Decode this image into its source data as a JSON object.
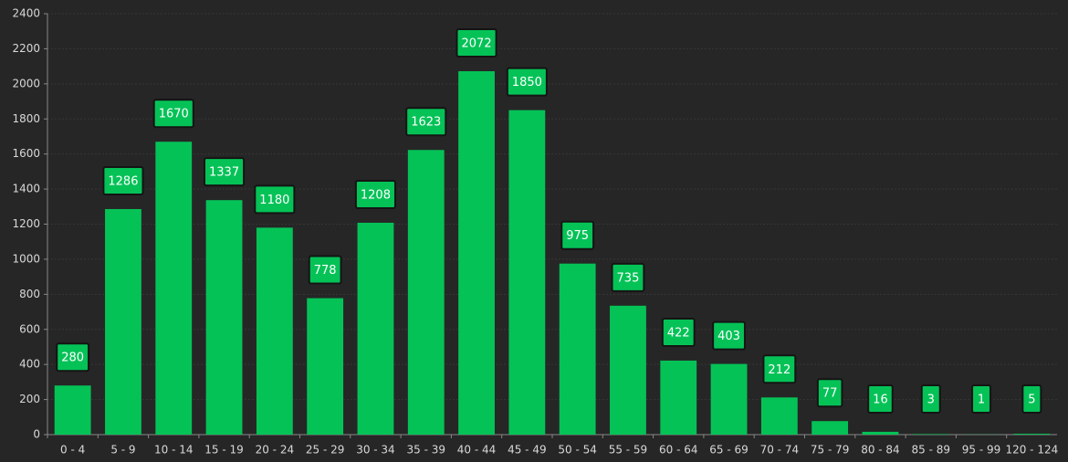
{
  "chart_data": {
    "type": "bar",
    "categories": [
      "0 - 4",
      "5 - 9",
      "10 - 14",
      "15 - 19",
      "20 - 24",
      "25 - 29",
      "30 - 34",
      "35 - 39",
      "40 - 44",
      "45 - 49",
      "50 - 54",
      "55 - 59",
      "60 - 64",
      "65 - 69",
      "70 - 74",
      "75 - 79",
      "80 - 84",
      "85 - 89",
      "95 - 99",
      "120 - 124"
    ],
    "values": [
      280,
      1286,
      1670,
      1337,
      1180,
      778,
      1208,
      1623,
      2072,
      1850,
      975,
      735,
      422,
      403,
      212,
      77,
      16,
      3,
      1,
      5
    ],
    "color": "#05c257",
    "ylim": [
      0,
      2400
    ],
    "yticks": [
      0,
      200,
      400,
      600,
      800,
      1000,
      1200,
      1400,
      1600,
      1800,
      2000,
      2200,
      2400
    ],
    "grid": true
  }
}
